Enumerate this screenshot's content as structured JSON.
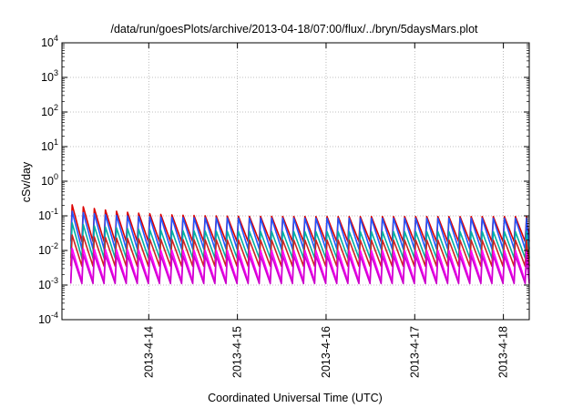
{
  "chart_data": {
    "type": "line",
    "title": "/data/run/goesPlots/archive/2013-04-18/07:00/flux/../bryn/5daysMars.plot",
    "xlabel": "Coordinated Universal Time (UTC)",
    "ylabel": "cSv/day",
    "y_scale": "log",
    "ylim": [
      0.0001,
      10000
    ],
    "y_ticks": [
      {
        "base": "10",
        "exp": "-4"
      },
      {
        "base": "10",
        "exp": "-3"
      },
      {
        "base": "10",
        "exp": "-2"
      },
      {
        "base": "10",
        "exp": "-1"
      },
      {
        "base": "10",
        "exp": "0"
      },
      {
        "base": "10",
        "exp": "1"
      },
      {
        "base": "10",
        "exp": "2"
      },
      {
        "base": "10",
        "exp": "3"
      },
      {
        "base": "10",
        "exp": "4"
      }
    ],
    "xlim": [
      "2013-04-13 00:30",
      "2013-04-18 07:00"
    ],
    "x_ticks": [
      "2013-4-14",
      "2013-4-15",
      "2013-4-16",
      "2013-4-17",
      "2013-4-18"
    ],
    "grid": true,
    "legend": "none",
    "sawtooth_period_hours": 3,
    "series": [
      {
        "color": "#dd0000",
        "start_peak": 0.24,
        "steady_peak": 0.095,
        "trough": 0.018
      },
      {
        "color": "#2255ff",
        "start_peak": 0.15,
        "steady_peak": 0.085,
        "trough": 0.011
      },
      {
        "color": "#00b0a0",
        "start_peak": 0.07,
        "steady_peak": 0.035,
        "trough": 0.006
      },
      {
        "color": "#cc2222",
        "start_peak": 0.03,
        "steady_peak": 0.02,
        "trough": 0.0035
      },
      {
        "color": "#ff00ff",
        "start_peak": 0.012,
        "steady_peak": 0.01,
        "trough": 0.0013
      },
      {
        "color": "#cc00cc",
        "start_peak": 0.008,
        "steady_peak": 0.007,
        "trough": 0.0011
      }
    ]
  }
}
